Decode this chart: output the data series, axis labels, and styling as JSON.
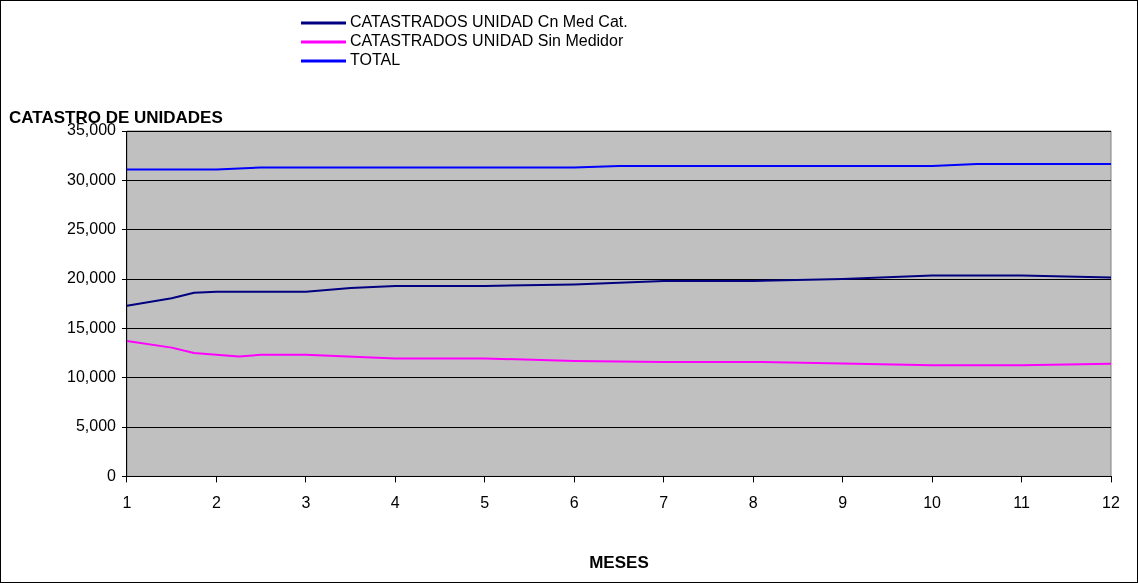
{
  "chart_data": {
    "type": "line",
    "ylabel": "CATASTRO DE UNIDADES",
    "xlabel": "MESES",
    "xlim": [
      1,
      12
    ],
    "xticks": [
      1,
      2,
      3,
      4,
      5,
      6,
      7,
      8,
      9,
      10,
      11,
      12
    ],
    "ylim": [
      0,
      35000
    ],
    "yticks": [
      {
        "value": 0,
        "label": "0"
      },
      {
        "value": 5000,
        "label": "5,000"
      },
      {
        "value": 10000,
        "label": "10,000"
      },
      {
        "value": 15000,
        "label": "15,000"
      },
      {
        "value": 20000,
        "label": "20,000"
      },
      {
        "value": 25000,
        "label": "25,000"
      },
      {
        "value": 30000,
        "label": "30,000"
      },
      {
        "value": 35000,
        "label": "35,000"
      }
    ],
    "grid": "y",
    "legend": "top",
    "marker": "none",
    "line_style": "solid",
    "series": [
      {
        "name": "CATASTRADOS UNIDAD Cn Med Cat.",
        "color": "#000080",
        "x": [
          1,
          1.5,
          1.75,
          2,
          3,
          3.5,
          4,
          5,
          6,
          7,
          8,
          9,
          10,
          11,
          12
        ],
        "values": [
          17300,
          18050,
          18600,
          18700,
          18700,
          19100,
          19300,
          19300,
          19450,
          19800,
          19800,
          20000,
          20350,
          20350,
          20150
        ]
      },
      {
        "name": "CATASTRADOS UNIDAD Sin Medidor",
        "color": "#ff00ff",
        "x": [
          1,
          1.5,
          1.75,
          2.25,
          2.5,
          3,
          4,
          5,
          6,
          7,
          8,
          9,
          10,
          11,
          12
        ],
        "values": [
          13730,
          13050,
          12500,
          12150,
          12330,
          12330,
          11950,
          11950,
          11700,
          11600,
          11600,
          11450,
          11260,
          11260,
          11420
        ]
      },
      {
        "name": "TOTAL",
        "color": "#0000ff",
        "x": [
          1,
          2,
          2.5,
          6,
          6.5,
          10,
          10.5,
          12
        ],
        "values": [
          31100,
          31100,
          31300,
          31300,
          31450,
          31450,
          31650,
          31650
        ]
      }
    ]
  }
}
